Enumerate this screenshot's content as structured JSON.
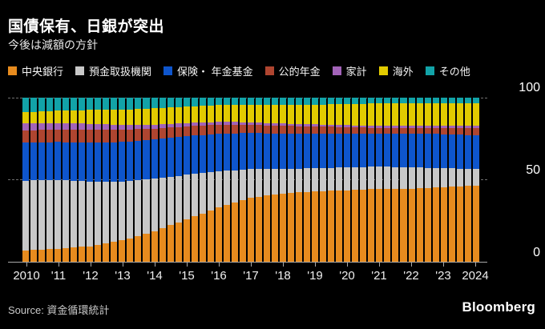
{
  "header": {
    "title": "国債保有、日銀が突出",
    "subtitle": "今後は減額の方針"
  },
  "footer": {
    "source": "Source: 資金循環統計",
    "brand": "Bloomberg"
  },
  "colors": {
    "background": "#000000",
    "central_bank": "#e78b1e",
    "deposit_institutions": "#c8c8c8",
    "insurance_pension": "#0e55cc",
    "public_pension": "#af4530",
    "households": "#a263b8",
    "overseas": "#e2cb00",
    "others": "#12a3a8",
    "gridline": "#6f6f6f",
    "axis_line": "#a9a9a9"
  },
  "legend": [
    {
      "label": "中央銀行",
      "color": "#e78b1e"
    },
    {
      "label": "預金取扱機関",
      "color": "#c8c8c8"
    },
    {
      "label": "保険・ 年金基金",
      "color": "#0e55cc"
    },
    {
      "label": "公的年金",
      "color": "#af4530"
    },
    {
      "label": "家計",
      "color": "#a263b8"
    },
    {
      "label": "海外",
      "color": "#e2cb00"
    },
    {
      "label": "その他",
      "color": "#12a3a8"
    }
  ],
  "chart_data": {
    "type": "bar",
    "stacked": true,
    "unit": "percent",
    "title": "国債保有、日銀が突出",
    "subtitle": "今後は減額の方針",
    "xlabel": "",
    "ylabel": "",
    "ylim": [
      0,
      100
    ],
    "yticks": [
      0,
      50,
      100
    ],
    "ytick_labels": [
      "0",
      "50",
      "100"
    ],
    "grid": "dashed horizontal at 50 and 100, solid baseline at 0",
    "legend_position": "top",
    "frequency": "quarterly",
    "x_tick_labels": [
      "2010",
      "'11",
      "'12",
      "'13",
      "'14",
      "'15",
      "'16",
      "'17",
      "'18",
      "'19",
      "'20",
      "'21",
      "'22",
      "'23",
      "2024"
    ],
    "bar_count": 57,
    "series": [
      {
        "name": "中央銀行",
        "color": "#e78b1e",
        "values": [
          7.0,
          7.25,
          7.5,
          7.75,
          8.0,
          8.4,
          8.75,
          9.1,
          9.5,
          10.4,
          11.25,
          12.1,
          13.0,
          14.4,
          15.75,
          17.1,
          18.5,
          20.4,
          22.25,
          24.1,
          26.0,
          27.75,
          29.5,
          31.25,
          33.0,
          34.5,
          36.0,
          37.5,
          39.0,
          39.6,
          40.25,
          40.9,
          41.5,
          41.9,
          42.25,
          42.6,
          43.0,
          43.1,
          43.25,
          43.4,
          43.5,
          43.75,
          44.0,
          44.25,
          44.5,
          44.5,
          44.5,
          44.5,
          44.5,
          44.75,
          45.0,
          45.25,
          45.5,
          45.75,
          46.0,
          46.25,
          46.5
        ]
      },
      {
        "name": "預金取扱機関",
        "color": "#c8c8c8",
        "values": [
          42.5,
          42.4,
          42.25,
          42.1,
          42.0,
          41.4,
          40.75,
          40.1,
          39.5,
          38.6,
          37.75,
          36.9,
          36.0,
          35.0,
          34.0,
          33.0,
          32.0,
          30.75,
          29.5,
          28.25,
          27.0,
          25.75,
          24.5,
          23.25,
          22.0,
          20.9,
          19.75,
          18.6,
          17.5,
          16.9,
          16.25,
          15.6,
          15.0,
          14.75,
          14.5,
          14.25,
          14.0,
          14.0,
          14.0,
          14.0,
          14.0,
          13.9,
          13.75,
          13.6,
          13.5,
          13.4,
          13.25,
          13.1,
          13.0,
          12.6,
          12.25,
          11.9,
          11.5,
          11.1,
          10.75,
          10.4,
          10.0
        ]
      },
      {
        "name": "保険・ 年金基金",
        "color": "#0e55cc",
        "values": [
          23.0,
          23.0,
          23.0,
          23.0,
          23.0,
          23.1,
          23.25,
          23.4,
          23.5,
          23.6,
          23.75,
          23.9,
          24.0,
          24.0,
          24.0,
          24.0,
          24.0,
          23.9,
          23.75,
          23.6,
          23.5,
          23.4,
          23.25,
          23.1,
          23.0,
          22.75,
          22.5,
          22.25,
          22.0,
          21.9,
          21.75,
          21.6,
          21.5,
          21.4,
          21.25,
          21.1,
          21.0,
          20.9,
          20.75,
          20.6,
          20.5,
          20.45,
          20.4,
          20.35,
          20.3,
          20.4,
          20.5,
          20.6,
          20.7,
          20.7,
          20.75,
          20.8,
          20.8,
          20.7,
          20.65,
          20.6,
          20.5
        ]
      },
      {
        "name": "公的年金",
        "color": "#af4530",
        "values": [
          7.5,
          7.5,
          7.5,
          7.5,
          7.5,
          7.6,
          7.75,
          7.9,
          8.0,
          7.9,
          7.75,
          7.6,
          7.5,
          7.25,
          7.0,
          6.75,
          6.5,
          6.4,
          6.25,
          6.1,
          6.0,
          5.9,
          5.75,
          5.6,
          5.5,
          5.4,
          5.25,
          5.1,
          5.0,
          4.95,
          4.9,
          4.85,
          4.8,
          4.7,
          4.65,
          4.6,
          4.5,
          4.4,
          4.25,
          4.1,
          4.0,
          3.8,
          3.65,
          3.5,
          3.3,
          3.35,
          3.4,
          3.45,
          3.5,
          3.6,
          3.7,
          3.8,
          3.9,
          4.0,
          4.15,
          4.3,
          4.4
        ]
      },
      {
        "name": "家計",
        "color": "#a263b8",
        "values": [
          4.5,
          4.4,
          4.25,
          4.1,
          4.0,
          3.9,
          3.75,
          3.6,
          3.5,
          3.4,
          3.25,
          3.1,
          3.0,
          2.9,
          2.75,
          2.6,
          2.5,
          2.4,
          2.25,
          2.1,
          2.0,
          1.95,
          1.9,
          1.85,
          1.8,
          1.7,
          1.65,
          1.6,
          1.5,
          1.48,
          1.45,
          1.43,
          1.4,
          1.38,
          1.35,
          1.33,
          1.3,
          1.28,
          1.25,
          1.23,
          1.2,
          1.2,
          1.2,
          1.2,
          1.2,
          1.2,
          1.2,
          1.2,
          1.2,
          1.2,
          1.2,
          1.2,
          1.2,
          1.23,
          1.25,
          1.28,
          1.3
        ]
      },
      {
        "name": "海外",
        "color": "#e2cb00",
        "values": [
          6.5,
          6.75,
          7.0,
          7.25,
          7.5,
          7.75,
          8.0,
          8.25,
          8.5,
          8.6,
          8.75,
          8.9,
          9.0,
          9.25,
          9.5,
          9.75,
          10.0,
          10.0,
          10.0,
          10.0,
          10.0,
          10.05,
          10.1,
          10.15,
          10.2,
          10.35,
          10.5,
          10.65,
          10.8,
          10.9,
          11.05,
          11.2,
          11.3,
          11.4,
          11.55,
          11.7,
          11.8,
          12.1,
          12.4,
          12.7,
          13.0,
          13.15,
          13.3,
          13.45,
          13.6,
          13.6,
          13.6,
          13.6,
          13.6,
          13.6,
          13.65,
          13.7,
          13.7,
          13.75,
          13.8,
          13.85,
          13.9
        ]
      },
      {
        "name": "その他",
        "color": "#12a3a8",
        "values": [
          9.0,
          8.75,
          8.5,
          8.25,
          8.0,
          7.9,
          7.75,
          7.6,
          7.5,
          7.5,
          7.5,
          7.5,
          7.5,
          7.25,
          7.0,
          6.75,
          6.5,
          6.25,
          6.0,
          5.75,
          5.5,
          5.25,
          5.0,
          4.75,
          4.5,
          4.4,
          4.35,
          4.3,
          4.2,
          4.3,
          4.35,
          4.4,
          4.5,
          4.5,
          4.45,
          4.4,
          4.4,
          4.25,
          4.1,
          3.95,
          3.8,
          3.75,
          3.7,
          3.65,
          3.6,
          3.6,
          3.55,
          3.5,
          3.5,
          3.5,
          3.45,
          3.4,
          3.4,
          3.4,
          3.4,
          3.4,
          3.4
        ]
      }
    ]
  }
}
